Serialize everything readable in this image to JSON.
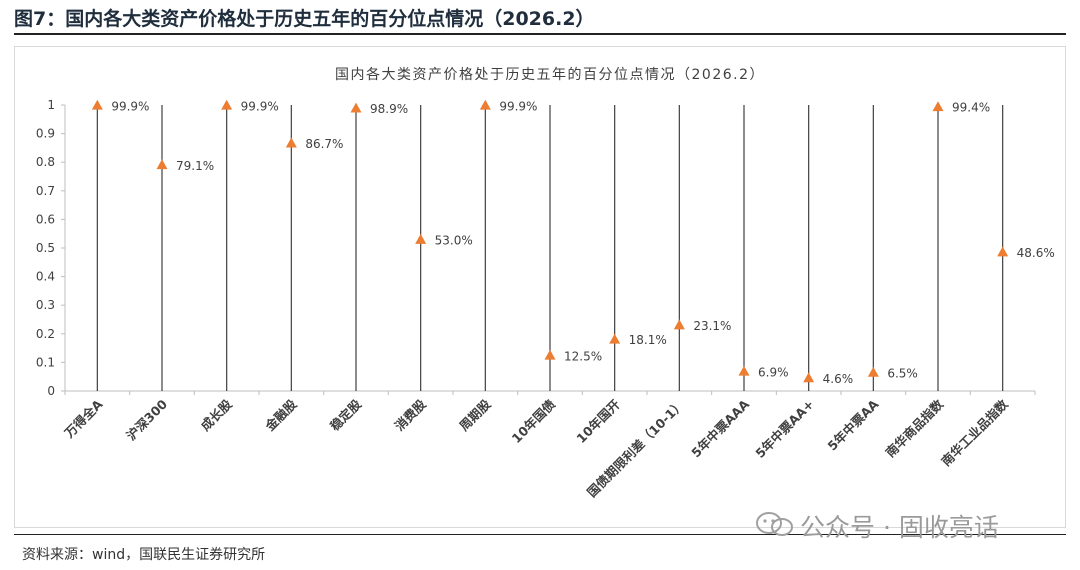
{
  "figure": {
    "title": "图7：国内各大类资产价格处于历史五年的百分位点情况（2026.2）",
    "source": "资料来源：wind，国联民生证券研究所",
    "watermark": "公众号 · 固收亮话"
  },
  "chart_data": {
    "type": "scatter",
    "title": "国内各大类资产价格处于历史五年的百分位点情况（2026.2）",
    "xlabel": "",
    "ylabel": "",
    "ylim": [
      0,
      1
    ],
    "yticks": [
      "0",
      "0.1",
      "0.2",
      "0.3",
      "0.4",
      "0.5",
      "0.6",
      "0.7",
      "0.8",
      "0.9",
      "1"
    ],
    "grid": false,
    "marker": "triangle",
    "marker_color": "#ED7D31",
    "drop_line_color": "#404040",
    "categories": [
      "万得全A",
      "沪深300",
      "成长股",
      "金融股",
      "稳定股",
      "消费股",
      "周期股",
      "10年国债",
      "10年国开",
      "国债期限利差（10-1）",
      "5年中票AAA",
      "5年中票AA+",
      "5年中票AA",
      "南华商品指数",
      "南华工业品指数"
    ],
    "values": [
      0.999,
      0.791,
      0.999,
      0.867,
      0.989,
      0.53,
      0.999,
      0.125,
      0.181,
      0.231,
      0.069,
      0.046,
      0.065,
      0.994,
      0.486
    ],
    "labels": [
      "99.9%",
      "79.1%",
      "99.9%",
      "86.7%",
      "98.9%",
      "53.0%",
      "99.9%",
      "12.5%",
      "18.1%",
      "23.1%",
      "6.9%",
      "4.6%",
      "6.5%",
      "99.4%",
      "48.6%"
    ]
  }
}
